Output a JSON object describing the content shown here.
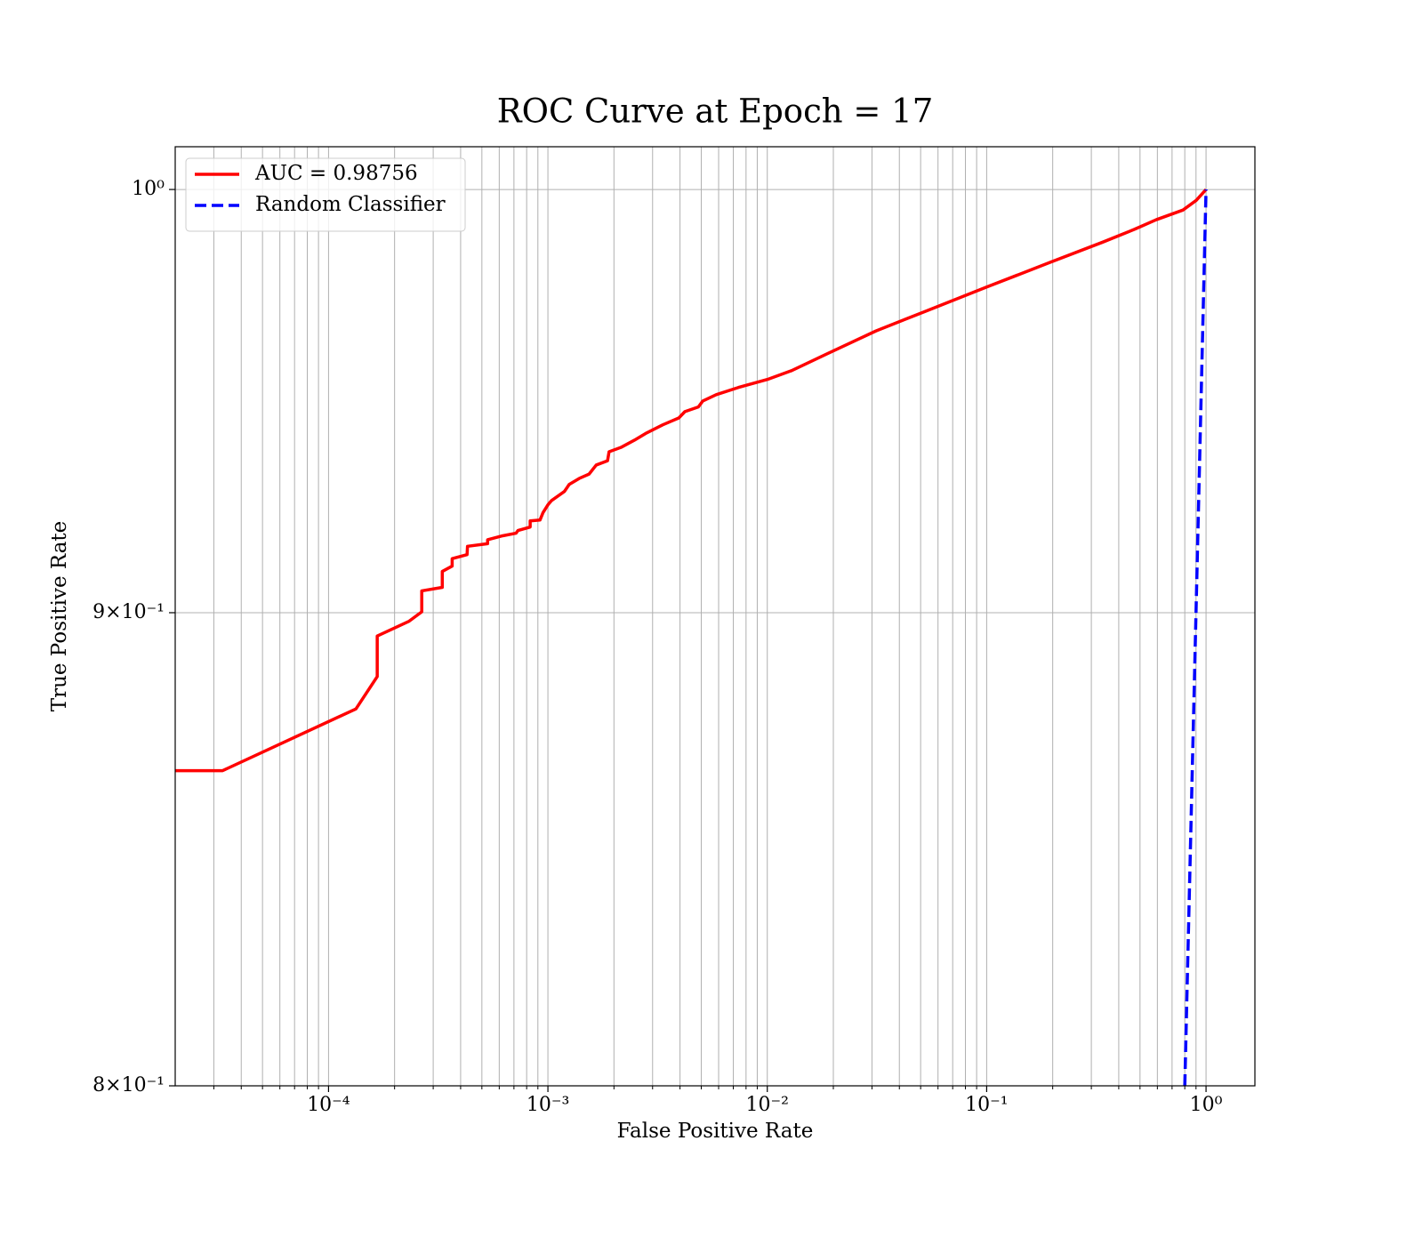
{
  "chart_data": {
    "type": "line",
    "title": "ROC Curve at Epoch = 17",
    "xlabel": "False Positive Rate",
    "ylabel": "True Positive Rate",
    "xscale": "log",
    "yscale": "log",
    "grid": true,
    "legend": "upper left",
    "xlim": [
      2e-05,
      1.67
    ],
    "ylim": [
      0.8,
      1.0107
    ],
    "xticks": [
      {
        "value": 0.0001,
        "label": "10⁻⁴"
      },
      {
        "value": 0.001,
        "label": "10⁻³"
      },
      {
        "value": 0.01,
        "label": "10⁻²"
      },
      {
        "value": 0.1,
        "label": "10⁻¹"
      },
      {
        "value": 1,
        "label": "10⁰"
      }
    ],
    "xminorticks": [
      3e-05,
      4e-05,
      5e-05,
      6e-05,
      7e-05,
      8e-05,
      9e-05,
      0.0002,
      0.0003,
      0.0004,
      0.0005,
      0.0006,
      0.0007,
      0.0008,
      0.0009,
      0.002,
      0.003,
      0.004,
      0.005,
      0.006,
      0.007,
      0.008,
      0.009,
      0.02,
      0.03,
      0.04,
      0.05,
      0.06,
      0.07,
      0.08,
      0.09,
      0.2,
      0.3,
      0.4,
      0.5,
      0.6,
      0.7,
      0.8,
      0.9
    ],
    "yticks": [
      {
        "value": 0.8,
        "label": "8×10⁻¹"
      },
      {
        "value": 0.9,
        "label": "9×10⁻¹"
      },
      {
        "value": 1,
        "label": "10⁰"
      }
    ],
    "series": [
      {
        "name": "AUC = 0.98756",
        "color": "#ff0000",
        "dash": false,
        "x": [
          2e-05,
          3.29e-05,
          0.0001333,
          0.0001667,
          0.0001667,
          0.000233,
          0.000266,
          0.000266,
          0.00033,
          0.00033,
          0.000366,
          0.000366,
          0.000428,
          0.00043,
          0.000531,
          0.000531,
          0.000622,
          0.000716,
          0.00073,
          0.00083,
          0.00083,
          0.00092,
          0.00095,
          0.001,
          0.00104,
          0.00119,
          0.00125,
          0.00139,
          0.00154,
          0.00166,
          0.00187,
          0.0019,
          0.00215,
          0.00248,
          0.00282,
          0.00334,
          0.00395,
          0.00421,
          0.00485,
          0.00508,
          0.00585,
          0.00738,
          0.01,
          0.0129,
          0.0187,
          0.0313,
          0.0524,
          0.1,
          0.194,
          0.339,
          0.47,
          0.593,
          0.785,
          0.902,
          1.0
        ],
        "values": [
          0.8653,
          0.8653,
          0.8787,
          0.8858,
          0.8948,
          0.8981,
          0.9002,
          0.9049,
          0.9057,
          0.9093,
          0.9105,
          0.9122,
          0.9131,
          0.915,
          0.9156,
          0.9165,
          0.9174,
          0.918,
          0.9186,
          0.9194,
          0.9208,
          0.921,
          0.9227,
          0.9245,
          0.9255,
          0.9276,
          0.9292,
          0.9306,
          0.9316,
          0.9337,
          0.9347,
          0.9368,
          0.9378,
          0.9395,
          0.9412,
          0.9431,
          0.9447,
          0.9462,
          0.9473,
          0.9487,
          0.9502,
          0.9519,
          0.9538,
          0.9559,
          0.9599,
          0.9654,
          0.9701,
          0.976,
          0.982,
          0.987,
          0.9901,
          0.9925,
          0.9949,
          0.9973,
          1.0
        ]
      },
      {
        "name": "Random Classifier",
        "color": "#0000ff",
        "dash": true,
        "x": [
          0.8,
          1.0
        ],
        "values": [
          0.8,
          1.0
        ]
      }
    ]
  }
}
